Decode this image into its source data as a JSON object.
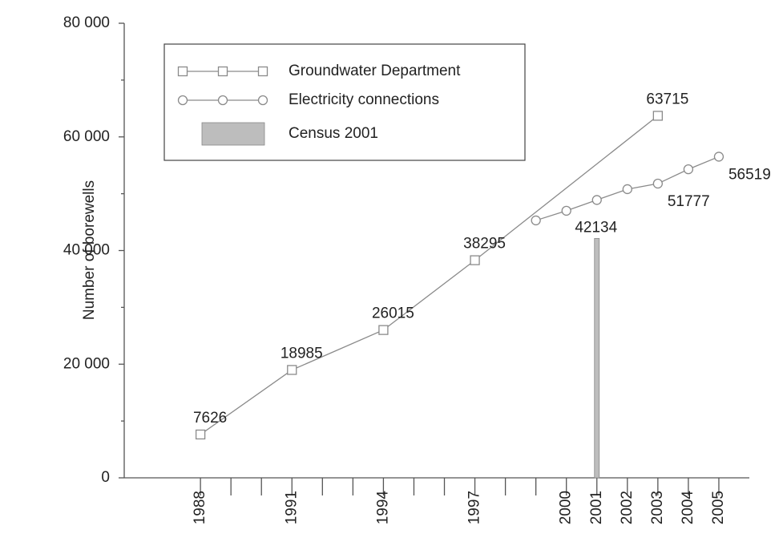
{
  "chart_data": {
    "type": "line",
    "y_label": "Number of borewells",
    "xlim": [
      1985.5,
      2006
    ],
    "xticks": [
      1988,
      1991,
      1994,
      1997,
      2000,
      2001,
      2002,
      2003,
      2004,
      2005
    ],
    "x_minor_ticks": [
      1989,
      1990,
      1992,
      1993,
      1995,
      1996,
      1998,
      1999
    ],
    "ylim": [
      0,
      80000
    ],
    "yticks": [
      {
        "value": 0,
        "label": "0"
      },
      {
        "value": 20000,
        "label": "20 000"
      },
      {
        "value": 40000,
        "label": "40 000"
      },
      {
        "value": 60000,
        "label": "60 000"
      },
      {
        "value": 80000,
        "label": "80 000"
      }
    ],
    "y_minor_ticks": [
      10000,
      30000,
      50000,
      70000
    ],
    "series": [
      {
        "name": "Groundwater Department",
        "color": "#8a8a8a",
        "marker": "square",
        "label_position": "above",
        "x": [
          1988,
          1991,
          1994,
          1997,
          2003
        ],
        "values": [
          7626,
          18985,
          26015,
          38295,
          63715
        ],
        "value_labels": [
          "7626",
          "18985",
          "26015",
          "38295",
          "63715"
        ]
      },
      {
        "name": "Electricity connections",
        "color": "#8a8a8a",
        "marker": "circle",
        "label_position": "below",
        "x": [
          1999,
          2000,
          2001,
          2002,
          2003,
          2004,
          2005
        ],
        "values": [
          45300,
          47000,
          48900,
          50800,
          51777,
          54300,
          56519
        ],
        "value_labels": [
          null,
          null,
          null,
          null,
          "51777",
          null,
          "56519"
        ]
      }
    ],
    "bars": {
      "name": "Census 2001",
      "color": "#bdbdbd",
      "x": [
        2001
      ],
      "values": [
        42134
      ],
      "value_labels": [
        "42134"
      ]
    }
  }
}
